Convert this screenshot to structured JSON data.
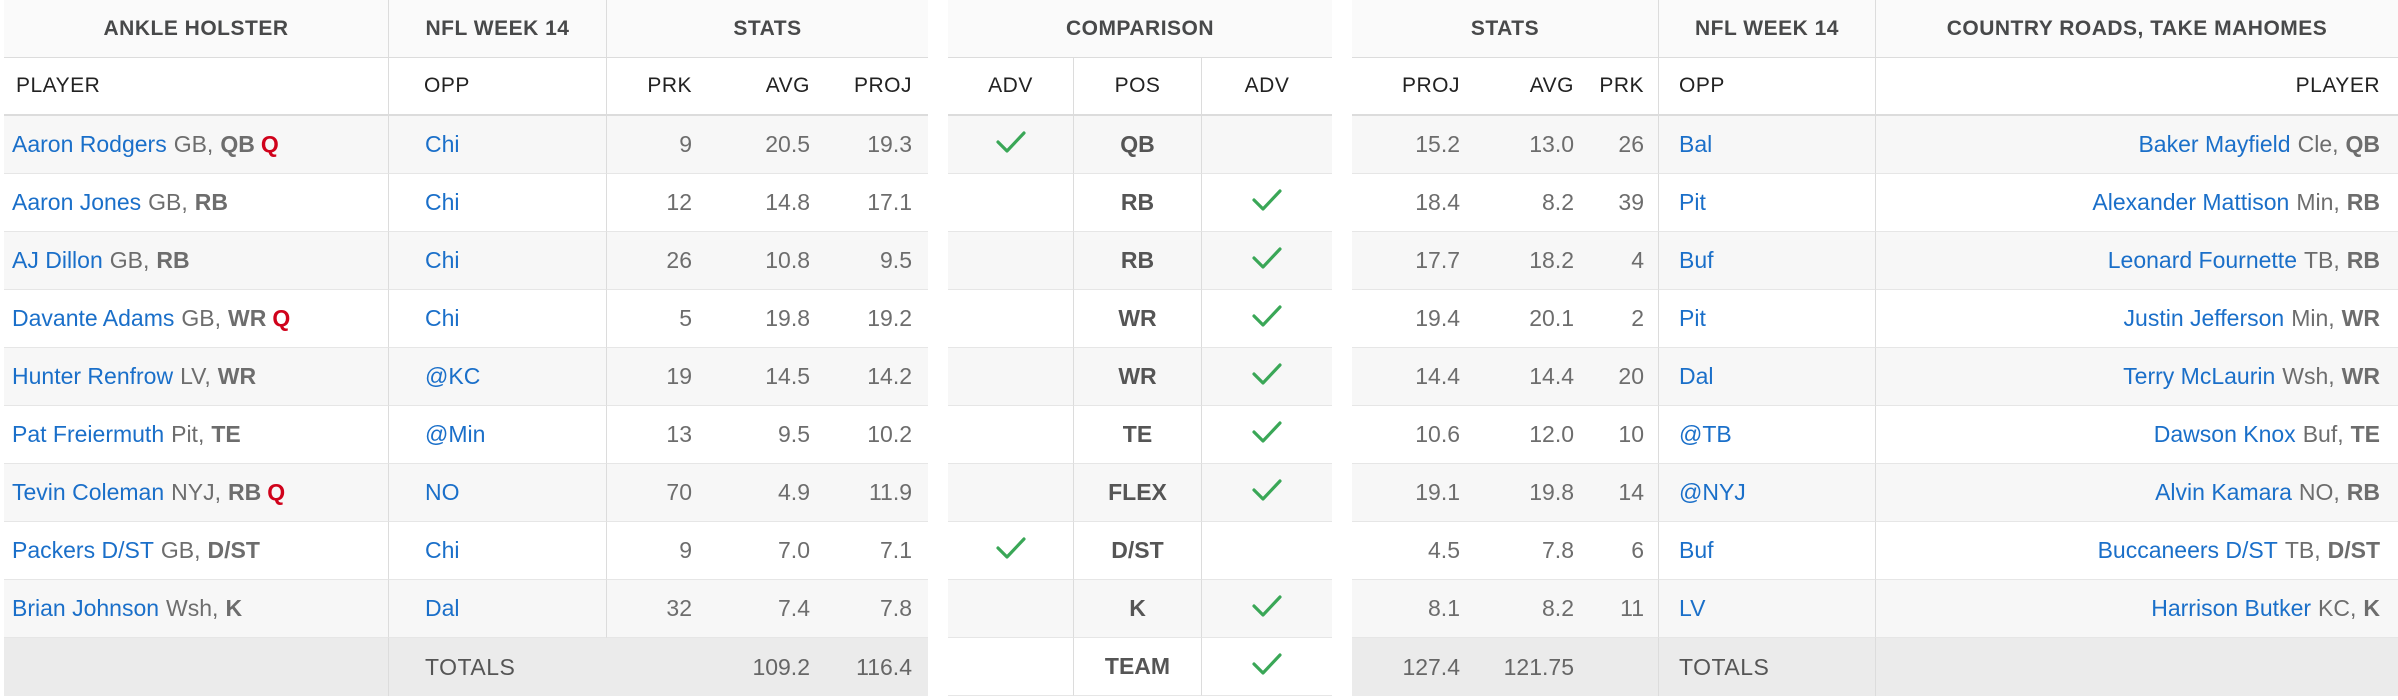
{
  "left": {
    "team_name": "ANKLE HOLSTER",
    "week_header": "NFL WEEK 14",
    "stats_header": "STATS",
    "col_player": "PLAYER",
    "col_opp": "OPP",
    "col_prk": "PRK",
    "col_avg": "AVG",
    "col_proj": "PROJ",
    "rows": [
      {
        "name": "Aaron Rodgers",
        "team": "GB,",
        "pos": "QB",
        "inj": "Q",
        "opp": "Chi",
        "prk": "9",
        "avg": "20.5",
        "proj": "19.3"
      },
      {
        "name": "Aaron Jones",
        "team": "GB,",
        "pos": "RB",
        "inj": "",
        "opp": "Chi",
        "prk": "12",
        "avg": "14.8",
        "proj": "17.1"
      },
      {
        "name": "AJ Dillon",
        "team": "GB,",
        "pos": "RB",
        "inj": "",
        "opp": "Chi",
        "prk": "26",
        "avg": "10.8",
        "proj": "9.5"
      },
      {
        "name": "Davante Adams",
        "team": "GB,",
        "pos": "WR",
        "inj": "Q",
        "opp": "Chi",
        "prk": "5",
        "avg": "19.8",
        "proj": "19.2"
      },
      {
        "name": "Hunter Renfrow",
        "team": "LV,",
        "pos": "WR",
        "inj": "",
        "opp": "@KC",
        "prk": "19",
        "avg": "14.5",
        "proj": "14.2"
      },
      {
        "name": "Pat Freiermuth",
        "team": "Pit,",
        "pos": "TE",
        "inj": "",
        "opp": "@Min",
        "prk": "13",
        "avg": "9.5",
        "proj": "10.2"
      },
      {
        "name": "Tevin Coleman",
        "team": "NYJ,",
        "pos": "RB",
        "inj": "Q",
        "opp": "NO",
        "prk": "70",
        "avg": "4.9",
        "proj": "11.9"
      },
      {
        "name": "Packers D/ST",
        "team": "GB,",
        "pos": "D/ST",
        "inj": "",
        "opp": "Chi",
        "prk": "9",
        "avg": "7.0",
        "proj": "7.1"
      },
      {
        "name": "Brian Johnson",
        "team": "Wsh,",
        "pos": "K",
        "inj": "",
        "opp": "Dal",
        "prk": "32",
        "avg": "7.4",
        "proj": "7.8"
      }
    ],
    "totals_label": "TOTALS",
    "totals_avg": "109.2",
    "totals_proj": "116.4"
  },
  "comparison": {
    "header": "COMPARISON",
    "col_adv_left": "ADV",
    "col_pos": "POS",
    "col_adv_right": "ADV",
    "rows": [
      {
        "pos": "QB",
        "adv": "left"
      },
      {
        "pos": "RB",
        "adv": "right"
      },
      {
        "pos": "RB",
        "adv": "right"
      },
      {
        "pos": "WR",
        "adv": "right"
      },
      {
        "pos": "WR",
        "adv": "right"
      },
      {
        "pos": "TE",
        "adv": "right"
      },
      {
        "pos": "FLEX",
        "adv": "right"
      },
      {
        "pos": "D/ST",
        "adv": "left"
      },
      {
        "pos": "K",
        "adv": "right"
      }
    ],
    "totals_pos": "TEAM",
    "totals_adv": "right",
    "check_color": "#3aa757"
  },
  "right": {
    "team_name": "COUNTRY ROADS, TAKE MAHOMES",
    "week_header": "NFL WEEK 14",
    "stats_header": "STATS",
    "col_proj": "PROJ",
    "col_avg": "AVG",
    "col_prk": "PRK",
    "col_opp": "OPP",
    "col_player": "PLAYER",
    "rows": [
      {
        "name": "Baker Mayfield",
        "team": "Cle,",
        "pos": "QB",
        "opp": "Bal",
        "prk": "26",
        "avg": "13.0",
        "proj": "15.2"
      },
      {
        "name": "Alexander Mattison",
        "team": "Min,",
        "pos": "RB",
        "opp": "Pit",
        "prk": "39",
        "avg": "8.2",
        "proj": "18.4"
      },
      {
        "name": "Leonard Fournette",
        "team": "TB,",
        "pos": "RB",
        "opp": "Buf",
        "prk": "4",
        "avg": "18.2",
        "proj": "17.7"
      },
      {
        "name": "Justin Jefferson",
        "team": "Min,",
        "pos": "WR",
        "opp": "Pit",
        "prk": "2",
        "avg": "20.1",
        "proj": "19.4"
      },
      {
        "name": "Terry McLaurin",
        "team": "Wsh,",
        "pos": "WR",
        "opp": "Dal",
        "prk": "20",
        "avg": "14.4",
        "proj": "14.4"
      },
      {
        "name": "Dawson Knox",
        "team": "Buf,",
        "pos": "TE",
        "opp": "@TB",
        "prk": "10",
        "avg": "12.0",
        "proj": "10.6"
      },
      {
        "name": "Alvin Kamara",
        "team": "NO,",
        "pos": "RB",
        "opp": "@NYJ",
        "prk": "14",
        "avg": "19.8",
        "proj": "19.1"
      },
      {
        "name": "Buccaneers D/ST",
        "team": "TB,",
        "pos": "D/ST",
        "opp": "Buf",
        "prk": "6",
        "avg": "7.8",
        "proj": "4.5"
      },
      {
        "name": "Harrison Butker",
        "team": "KC,",
        "pos": "K",
        "opp": "LV",
        "prk": "11",
        "avg": "8.2",
        "proj": "8.1"
      }
    ],
    "totals_label": "TOTALS",
    "totals_avg": "121.75",
    "totals_proj": "127.4"
  }
}
